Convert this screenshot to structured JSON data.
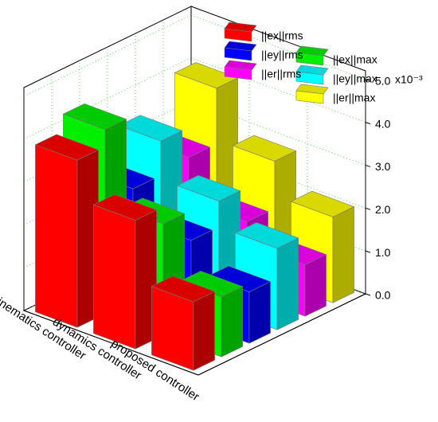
{
  "chart_data": {
    "type": "bar3d",
    "categories": [
      "kinematics controller",
      "dynamics controller",
      "proposed controller"
    ],
    "category_colors": [
      "#d8281c",
      "#6a2bd0",
      "#c030c8"
    ],
    "series": [
      {
        "name": "||ex||rms",
        "color": "#ff0000",
        "values": [
          3.9,
          3.0,
          1.6
        ]
      },
      {
        "name": "||ex||max",
        "color": "#00ee00",
        "values": [
          4.3,
          2.6,
          1.4
        ]
      },
      {
        "name": "||ey||rms",
        "color": "#0000ff",
        "values": [
          2.6,
          1.9,
          1.2
        ]
      },
      {
        "name": "||ey||max",
        "color": "#00ffff",
        "values": [
          3.4,
          2.5,
          1.9
        ]
      },
      {
        "name": "||er||rms",
        "color": "#ff00ff",
        "values": [
          2.7,
          1.7,
          1.2
        ]
      },
      {
        "name": "||er||max",
        "color": "#ffff00",
        "values": [
          4.0,
          2.8,
          2.0
        ]
      }
    ],
    "ylim": [
      0,
      5.2
    ],
    "yticks": [
      {
        "value": 0,
        "label": "0.0"
      },
      {
        "value": 1,
        "label": "1.0"
      },
      {
        "value": 2,
        "label": "2.0"
      },
      {
        "value": 3,
        "label": "3.0"
      },
      {
        "value": 4,
        "label": "4.0"
      },
      {
        "value": 5,
        "label": "5.0"
      }
    ],
    "y_unit": "x10⁻³",
    "grid": true
  }
}
